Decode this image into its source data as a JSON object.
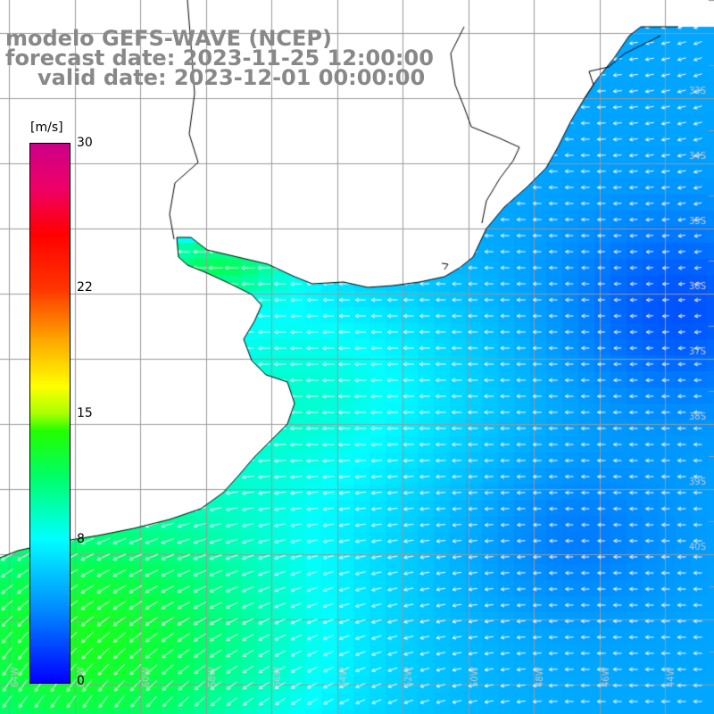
{
  "title": {
    "line1": "modelo GEFS-WAVE (NCEP)",
    "line2": "forecast date: 2023-11-25 12:00:00",
    "line3": "valid date: 2023-12-01 00:00:00"
  },
  "colorbar": {
    "unit": "[m/s]",
    "min": 0,
    "max": 30,
    "tick_labels": [
      {
        "value": 30,
        "text": "30"
      },
      {
        "value": 22,
        "text": "22"
      },
      {
        "value": 15,
        "text": "15"
      },
      {
        "value": 8,
        "text": "8"
      },
      {
        "value": 0,
        "text": "0"
      }
    ],
    "stops": [
      {
        "value": 0,
        "color": "#0000ff"
      },
      {
        "value": 4,
        "color": "#0088ff"
      },
      {
        "value": 8,
        "color": "#00ffff"
      },
      {
        "value": 11.5,
        "color": "#00ff66"
      },
      {
        "value": 14,
        "color": "#22ff00"
      },
      {
        "value": 15,
        "color": "#aaff00"
      },
      {
        "value": 16.5,
        "color": "#ffff00"
      },
      {
        "value": 19,
        "color": "#ffaa00"
      },
      {
        "value": 22,
        "color": "#ff3300"
      },
      {
        "value": 25,
        "color": "#ff0000"
      },
      {
        "value": 27.5,
        "color": "#ee0066"
      },
      {
        "value": 30,
        "color": "#cc0088"
      }
    ]
  },
  "map": {
    "lon_labels": [
      "64W",
      "62W",
      "60W",
      "58W",
      "56W",
      "54W",
      "52W",
      "50W",
      "48W",
      "46W",
      "44W",
      "42W"
    ],
    "lat_labels": [
      "33S",
      "34S",
      "35S",
      "36S",
      "37S",
      "38S",
      "39S",
      "40S"
    ],
    "land_color": "#ffffff",
    "grid_color": "#999999",
    "arrow_color": "#ffffff"
  },
  "chart_data": {
    "type": "heatmap",
    "variable": "wind speed with wind direction arrows",
    "unit": "m/s",
    "range": [
      0,
      30
    ],
    "description_values": {
      "south_west_shelf": 13,
      "mid_plume": 9,
      "offshore_east": 5
    }
  }
}
